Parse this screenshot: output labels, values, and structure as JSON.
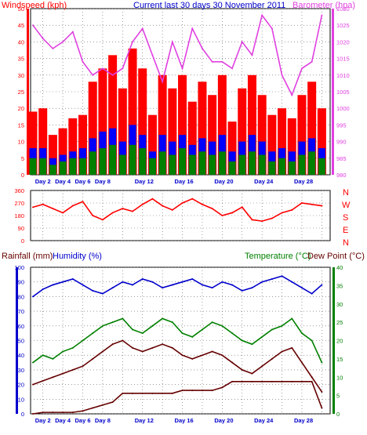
{
  "header": {
    "left_title": "Windspeed (kph)",
    "center_title": "Current last 30 days 30 November 2011",
    "right_title": "Barometer (hpa)"
  },
  "lower_header": {
    "rainfall_title": "Rainfall (mm)",
    "humidity_title": "Humidity (%)",
    "temperature_title": "Temperature (°C)",
    "dewpoint_title": "Dew Point (°C)"
  },
  "direction_labels": [
    "N",
    "W",
    "S",
    "E",
    "N"
  ],
  "x_tick_labels": [
    "Day 2",
    "Day 4",
    "Day 6",
    "Day 8",
    "Day 12",
    "Day 16",
    "Day 20",
    "Day 24",
    "Day 28"
  ],
  "colors": {
    "windspeed": "#ff0000",
    "gust": "#0000ff",
    "average": "#008000",
    "barometer": "#e040e0",
    "direction": "#ff0000",
    "humidity": "#0000cc",
    "temperature": "#008000",
    "dewpoint": "#660000",
    "rainfall": "#660000",
    "grid": "#606060"
  },
  "chart_data": [
    {
      "type": "area",
      "title": "Current last 30 days 30 November 2011",
      "ylabel": "Windspeed (kph)",
      "ylim": [
        0,
        50
      ],
      "yticks": [
        0,
        5,
        10,
        15,
        20,
        25,
        30,
        35,
        40,
        45,
        50
      ],
      "ylabel_right": "Barometer (hpa)",
      "ylim_right": [
        980,
        1030
      ],
      "yticks_right": [
        980,
        985,
        990,
        995,
        1000,
        1005,
        1010,
        1015,
        1020,
        1025,
        1030
      ],
      "x": [
        1,
        2,
        3,
        4,
        5,
        6,
        7,
        8,
        9,
        10,
        11,
        12,
        13,
        14,
        15,
        16,
        17,
        18,
        19,
        20,
        21,
        22,
        23,
        24,
        25,
        26,
        27,
        28,
        29,
        30
      ],
      "series": [
        {
          "name": "Windspeed (kph)",
          "axis": "left",
          "values": [
            19,
            20,
            12,
            14,
            17,
            18,
            28,
            32,
            36,
            26,
            38,
            32,
            18,
            30,
            26,
            30,
            22,
            28,
            24,
            30,
            16,
            26,
            30,
            24,
            18,
            20,
            17,
            24,
            28,
            20
          ]
        },
        {
          "axis": "left",
          "values": [
            8,
            8,
            5,
            6,
            7,
            8,
            11,
            13,
            14,
            10,
            15,
            12,
            7,
            12,
            10,
            12,
            9,
            11,
            10,
            12,
            7,
            10,
            12,
            10,
            7,
            8,
            7,
            10,
            11,
            8
          ]
        },
        {
          "axis": "left",
          "values": [
            5,
            5,
            3,
            4,
            5,
            5,
            7,
            8,
            9,
            6,
            9,
            8,
            5,
            7,
            6,
            8,
            6,
            7,
            6,
            7,
            4,
            6,
            7,
            6,
            4,
            5,
            4,
            6,
            7,
            5
          ]
        },
        {
          "name": "Barometer (hpa)",
          "axis": "right",
          "values": [
            1025,
            1021,
            1018,
            1020,
            1023,
            1014,
            1010,
            1012,
            1010,
            1012,
            1020,
            1024,
            1016,
            1008,
            1020,
            1012,
            1024,
            1018,
            1014,
            1014,
            1012,
            1020,
            1016,
            1028,
            1024,
            1010,
            1004,
            1012,
            1014,
            1028
          ]
        }
      ]
    },
    {
      "type": "line",
      "ylim": [
        0,
        360
      ],
      "yticks": [
        0,
        90,
        180,
        270,
        360
      ],
      "x": [
        1,
        2,
        3,
        4,
        5,
        6,
        7,
        8,
        9,
        10,
        11,
        12,
        13,
        14,
        15,
        16,
        17,
        18,
        19,
        20,
        21,
        22,
        23,
        24,
        25,
        26,
        27,
        28,
        29,
        30
      ],
      "series": [
        {
          "values": [
            240,
            260,
            230,
            200,
            250,
            280,
            180,
            150,
            200,
            230,
            210,
            260,
            300,
            250,
            220,
            270,
            300,
            260,
            230,
            180,
            200,
            240,
            150,
            140,
            160,
            200,
            220,
            270,
            260,
            250
          ]
        }
      ]
    },
    {
      "type": "line",
      "ylabel": "Rainfall (mm) / Humidity (%)",
      "ylim": [
        0,
        100
      ],
      "yticks": [
        0,
        10,
        20,
        30,
        40,
        50,
        60,
        70,
        80,
        90,
        100
      ],
      "ylabel_right": "Temperature (°C) / Dew Point (°C)",
      "ylim_right": [
        0,
        40
      ],
      "yticks_right": [
        0,
        5,
        10,
        15,
        20,
        25,
        30,
        35,
        40
      ],
      "x": [
        1,
        2,
        3,
        4,
        5,
        6,
        7,
        8,
        9,
        10,
        11,
        12,
        13,
        14,
        15,
        16,
        17,
        18,
        19,
        20,
        21,
        22,
        23,
        24,
        25,
        26,
        27,
        28,
        29,
        30
      ],
      "series": [
        {
          "name": "Humidity (%)",
          "axis": "left",
          "values": [
            80,
            85,
            88,
            90,
            92,
            88,
            84,
            82,
            86,
            90,
            88,
            92,
            90,
            86,
            88,
            90,
            92,
            88,
            86,
            90,
            88,
            84,
            86,
            90,
            92,
            94,
            90,
            86,
            82,
            88
          ]
        },
        {
          "name": "Temperature (°C)",
          "axis": "right",
          "values": [
            14,
            16,
            15,
            17,
            18,
            20,
            22,
            24,
            25,
            26,
            23,
            22,
            24,
            26,
            25,
            22,
            21,
            23,
            25,
            24,
            22,
            20,
            19,
            21,
            23,
            24,
            26,
            22,
            20,
            14
          ]
        },
        {
          "name": "Dew Point (°C)",
          "axis": "right",
          "values": [
            8,
            9,
            10,
            11,
            12,
            13,
            15,
            17,
            19,
            20,
            18,
            17,
            18,
            19,
            18,
            16,
            15,
            16,
            17,
            16,
            14,
            12,
            11,
            13,
            15,
            17,
            18,
            14,
            10,
            6
          ]
        },
        {
          "name": "Rainfall (mm)",
          "axis": "left",
          "values": [
            0,
            1,
            1,
            1,
            1,
            2,
            4,
            6,
            8,
            14,
            14,
            14,
            14,
            14,
            14,
            16,
            16,
            16,
            16,
            18,
            22,
            22,
            22,
            22,
            22,
            22,
            22,
            22,
            22,
            4
          ]
        }
      ]
    }
  ]
}
